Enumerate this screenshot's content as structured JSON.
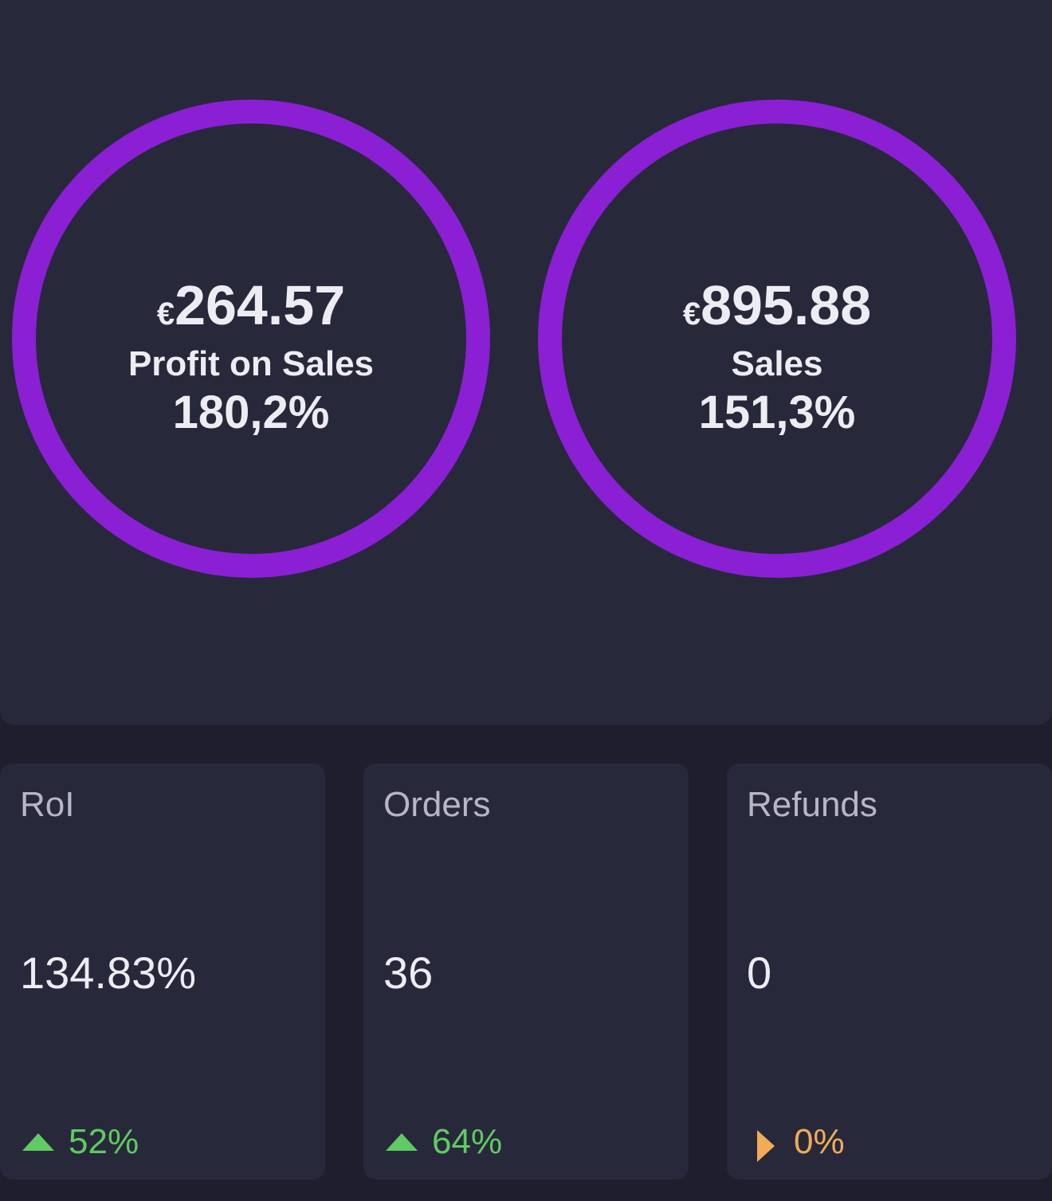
{
  "circles": [
    {
      "currency": "€",
      "amount": "264.57",
      "label": "Profit on Sales",
      "percent": "180,2%"
    },
    {
      "currency": "€",
      "amount": "895.88",
      "label": "Sales",
      "percent": "151,3%"
    }
  ],
  "cards": [
    {
      "title": "RoI",
      "value": "134.83%",
      "change": "52%"
    },
    {
      "title": "Orders",
      "value": "36",
      "change": "64%"
    },
    {
      "title": "Refunds",
      "value": "0",
      "change": "0%"
    }
  ]
}
